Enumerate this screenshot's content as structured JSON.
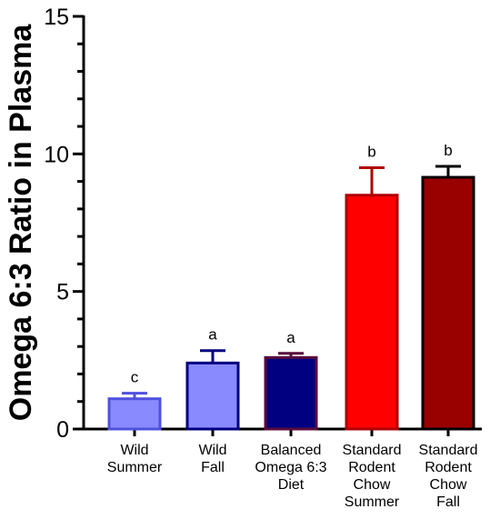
{
  "chart_data": {
    "type": "bar",
    "ylabel": "Omega 6:3 Ratio in Plasma",
    "xlabel": "",
    "ylim": [
      0,
      15
    ],
    "yticks": [
      0,
      5,
      10,
      15
    ],
    "grid": false,
    "categories": [
      [
        "Wild",
        "Summer"
      ],
      [
        "Wild",
        "Fall"
      ],
      [
        "Balanced",
        "Omega 6:3",
        "Diet"
      ],
      [
        "Standard",
        "Rodent",
        "Chow",
        "Summer"
      ],
      [
        "Standard",
        "Rodent",
        "Chow",
        "Fall"
      ]
    ],
    "values": [
      1.1,
      2.4,
      2.6,
      8.5,
      9.15
    ],
    "error": [
      0.2,
      0.45,
      0.15,
      1.0,
      0.4
    ],
    "significance": [
      "c",
      "a",
      "a",
      "b",
      "b"
    ],
    "fill_colors": [
      "#8a8aff",
      "#8a8aff",
      "#000080",
      "#ff0000",
      "#990000"
    ],
    "edge_colors": [
      "#5050e0",
      "#000080",
      "#5a0c3c",
      "#b00000",
      "#000000"
    ]
  }
}
